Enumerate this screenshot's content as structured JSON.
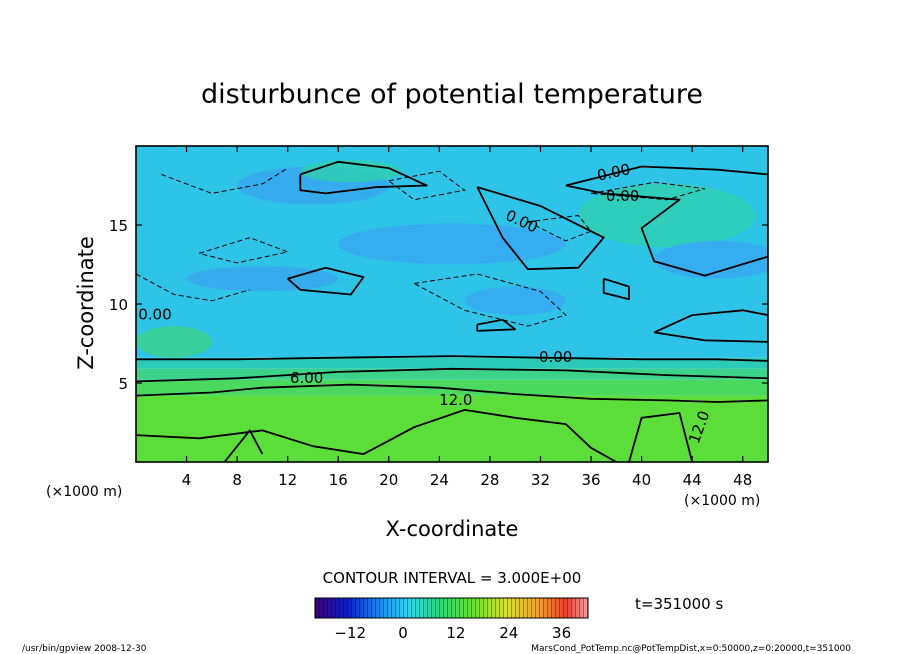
{
  "chart_data": {
    "type": "heatmap",
    "title": "disturbunce of potential temperature",
    "xlabel": "X-coordinate",
    "ylabel": "Z-coordinate",
    "x_unit": "(×1000 m)",
    "z_unit": "(×1000 m)",
    "xlim": [
      0,
      50
    ],
    "ylim": [
      0,
      20
    ],
    "x_ticks": [
      "4",
      "8",
      "12",
      "16",
      "20",
      "24",
      "28",
      "32",
      "36",
      "40",
      "44",
      "48"
    ],
    "y_ticks": [
      "5",
      "10",
      "15"
    ],
    "contour_interval_label": "CONTOUR INTERVAL = 3.000E+00",
    "contour_labels": [
      "0.00",
      "0.00",
      "0.00",
      "0.00",
      "0.00",
      "6.00",
      "12.0",
      "12.0"
    ],
    "time_label": "t=351000 s",
    "colorbar": {
      "ticks": [
        "−12",
        "0",
        "12",
        "24",
        "36"
      ],
      "tick_values": [
        -12,
        0,
        12,
        24,
        36
      ],
      "range": [
        -20,
        42
      ]
    },
    "field": {
      "layers": [
        {
          "z_from": 0,
          "z_to": 4.2,
          "value": 12.5,
          "color": "#5cde3a"
        },
        {
          "z_from": 4.2,
          "z_to": 5.2,
          "value": 8,
          "color": "#4ad85e"
        },
        {
          "z_from": 5.2,
          "z_to": 5.9,
          "value": 5,
          "color": "#3cd28a"
        },
        {
          "z_from": 5.9,
          "z_to": 6.6,
          "value": 2,
          "color": "#2ccab8"
        },
        {
          "z_from": 6.6,
          "z_to": 20,
          "value": 0,
          "color": "#2ec4e8"
        }
      ],
      "patches": [
        {
          "x": 14,
          "z": 17.5,
          "rx": 6,
          "rz": 1.2,
          "value": -1,
          "color": "#38a6f0"
        },
        {
          "x": 25,
          "z": 13.8,
          "rx": 9,
          "rz": 1.3,
          "value": -1,
          "color": "#3aa8f2"
        },
        {
          "x": 42,
          "z": 15.6,
          "rx": 7,
          "rz": 2.0,
          "value": 2,
          "color": "#30d0b0"
        },
        {
          "x": 17,
          "z": 18.4,
          "rx": 4,
          "rz": 0.7,
          "value": 2,
          "color": "#30d0b0"
        },
        {
          "x": 30,
          "z": 10.2,
          "rx": 4,
          "rz": 0.9,
          "value": -1,
          "color": "#3aa8f2"
        },
        {
          "x": 10,
          "z": 11.6,
          "rx": 6,
          "rz": 0.8,
          "value": -1,
          "color": "#38a6f0"
        },
        {
          "x": 3,
          "z": 7.6,
          "rx": 3,
          "rz": 1.0,
          "value": 5,
          "color": "#3cd28a"
        },
        {
          "x": 46,
          "z": 12.8,
          "rx": 5,
          "rz": 1.2,
          "value": -1,
          "color": "#3aa8f2"
        }
      ]
    },
    "contours": {
      "solid": [
        [
          [
            13,
            18.2
          ],
          [
            16,
            19.0
          ],
          [
            20,
            18.6
          ],
          [
            23,
            17.5
          ],
          [
            19,
            17.4
          ],
          [
            15,
            17.0
          ],
          [
            13,
            17.2
          ],
          [
            13,
            18.2
          ]
        ],
        [
          [
            34,
            17.5
          ],
          [
            40,
            18.7
          ],
          [
            46,
            18.5
          ],
          [
            50,
            18.2
          ],
          [
            50,
            13.0
          ],
          [
            45,
            11.8
          ],
          [
            41,
            12.7
          ],
          [
            40,
            14.8
          ],
          [
            43,
            16.6
          ],
          [
            37,
            17.0
          ],
          [
            34,
            17.5
          ]
        ],
        [
          [
            27,
            17.4
          ],
          [
            32,
            16.2
          ],
          [
            37,
            14.2
          ],
          [
            35,
            12.3
          ],
          [
            31,
            12.2
          ],
          [
            29,
            14.2
          ],
          [
            27,
            17.4
          ]
        ],
        [
          [
            37,
            11.6
          ],
          [
            39,
            11.1
          ],
          [
            39,
            10.3
          ],
          [
            37,
            10.7
          ],
          [
            37,
            11.6
          ]
        ],
        [
          [
            12,
            11.6
          ],
          [
            15,
            12.3
          ],
          [
            18,
            11.7
          ],
          [
            17,
            10.6
          ],
          [
            13,
            10.9
          ],
          [
            12,
            11.6
          ]
        ],
        [
          [
            27,
            8.7
          ],
          [
            29,
            9.0
          ],
          [
            30,
            8.4
          ],
          [
            27,
            8.3
          ],
          [
            27,
            8.7
          ]
        ],
        [
          [
            41,
            8.2
          ],
          [
            44,
            9.3
          ],
          [
            48,
            9.6
          ],
          [
            50,
            9.3
          ],
          [
            50,
            7.6
          ],
          [
            45,
            7.7
          ],
          [
            41,
            8.2
          ]
        ],
        [
          [
            0,
            6.5
          ],
          [
            8,
            6.5
          ],
          [
            16,
            6.6
          ],
          [
            25,
            6.7
          ],
          [
            32,
            6.6
          ],
          [
            40,
            6.5
          ],
          [
            46,
            6.5
          ],
          [
            50,
            6.4
          ]
        ],
        [
          [
            0,
            5.1
          ],
          [
            8,
            5.3
          ],
          [
            16,
            5.7
          ],
          [
            25,
            5.9
          ],
          [
            34,
            5.8
          ],
          [
            42,
            5.5
          ],
          [
            50,
            5.3
          ]
        ],
        [
          [
            0,
            4.2
          ],
          [
            6,
            4.4
          ],
          [
            10,
            4.7
          ],
          [
            17,
            4.9
          ],
          [
            24,
            4.7
          ],
          [
            30,
            4.3
          ],
          [
            36,
            4.0
          ],
          [
            42,
            3.9
          ],
          [
            46,
            3.8
          ],
          [
            50,
            3.9
          ]
        ],
        [
          [
            0,
            1.7
          ],
          [
            5,
            1.5
          ],
          [
            10,
            2.0
          ],
          [
            14,
            1.0
          ],
          [
            18,
            0.5
          ],
          [
            22,
            2.2
          ],
          [
            26,
            3.3
          ],
          [
            30,
            2.8
          ],
          [
            34,
            2.4
          ],
          [
            36,
            0.9
          ],
          [
            38,
            0.0
          ]
        ],
        [
          [
            7,
            0.0
          ],
          [
            9,
            2.0
          ],
          [
            10,
            0.5
          ]
        ],
        [
          [
            39,
            0.0
          ],
          [
            40,
            2.8
          ],
          [
            43,
            3.1
          ],
          [
            44,
            0.0
          ]
        ]
      ],
      "dashed": [
        [
          [
            2,
            18.2
          ],
          [
            6,
            17.0
          ],
          [
            10,
            17.6
          ],
          [
            12,
            18.6
          ]
        ],
        [
          [
            20,
            17.8
          ],
          [
            24,
            18.4
          ],
          [
            26,
            17.2
          ],
          [
            22,
            16.6
          ],
          [
            20,
            17.8
          ]
        ],
        [
          [
            31,
            15.2
          ],
          [
            34,
            14.0
          ],
          [
            36,
            14.6
          ],
          [
            35,
            15.6
          ],
          [
            31,
            15.2
          ]
        ],
        [
          [
            22,
            11.3
          ],
          [
            27,
            11.9
          ],
          [
            32,
            10.8
          ],
          [
            34,
            9.3
          ],
          [
            31,
            8.6
          ],
          [
            26,
            9.6
          ],
          [
            22,
            11.3
          ]
        ],
        [
          [
            5,
            13.2
          ],
          [
            9,
            14.2
          ],
          [
            12,
            13.3
          ],
          [
            8,
            12.6
          ],
          [
            5,
            13.2
          ]
        ],
        [
          [
            36,
            17.0
          ],
          [
            41,
            17.7
          ],
          [
            45,
            17.3
          ],
          [
            42,
            16.6
          ],
          [
            36,
            17.0
          ]
        ],
        [
          [
            0,
            11.9
          ],
          [
            3,
            10.6
          ],
          [
            6,
            10.2
          ],
          [
            9,
            10.9
          ]
        ]
      ]
    }
  },
  "footer": {
    "left": "/usr/bin/gpview   2008-12-30",
    "right": "MarsCond_PotTemp.nc@PotTempDist,x=0:50000,z=0:20000,t=351000"
  }
}
